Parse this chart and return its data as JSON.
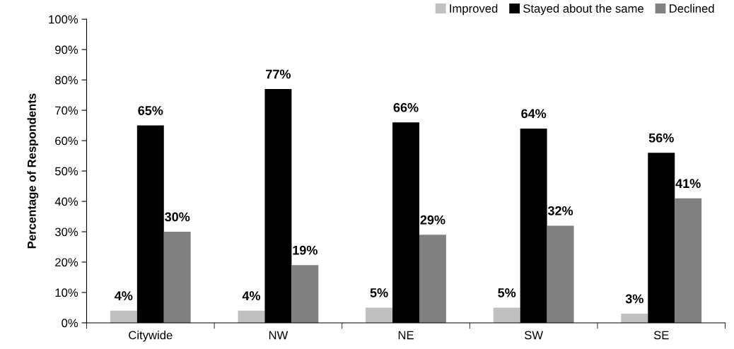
{
  "chart_data": {
    "type": "bar",
    "ylabel": "Percentage of Respondents",
    "categories": [
      "Citywide",
      "NW",
      "NE",
      "SW",
      "SE"
    ],
    "series": [
      {
        "name": "Improved",
        "color": "#c0c0c0",
        "values": [
          4,
          4,
          5,
          5,
          3
        ],
        "value_labels": [
          "4%",
          "4%",
          "5%",
          "5%",
          "3%"
        ]
      },
      {
        "name": "Stayed about the same",
        "color": "#000000",
        "values": [
          65,
          77,
          66,
          64,
          56
        ],
        "value_labels": [
          "65%",
          "77%",
          "66%",
          "64%",
          "56%"
        ]
      },
      {
        "name": "Declined",
        "color": "#808080",
        "values": [
          30,
          19,
          29,
          32,
          41
        ],
        "value_labels": [
          "30%",
          "19%",
          "29%",
          "32%",
          "41%"
        ]
      }
    ],
    "ylim": [
      0,
      100
    ],
    "yticks": [
      {
        "value": 0,
        "label": "0%"
      },
      {
        "value": 10,
        "label": "10%"
      },
      {
        "value": 20,
        "label": "20%"
      },
      {
        "value": 30,
        "label": "30%"
      },
      {
        "value": 40,
        "label": "40%"
      },
      {
        "value": 50,
        "label": "50%"
      },
      {
        "value": 60,
        "label": "60%"
      },
      {
        "value": 70,
        "label": "70%"
      },
      {
        "value": 80,
        "label": "80%"
      },
      {
        "value": 90,
        "label": "90%"
      },
      {
        "value": 100,
        "label": "100%"
      }
    ],
    "grid": false,
    "legend": "top right"
  }
}
